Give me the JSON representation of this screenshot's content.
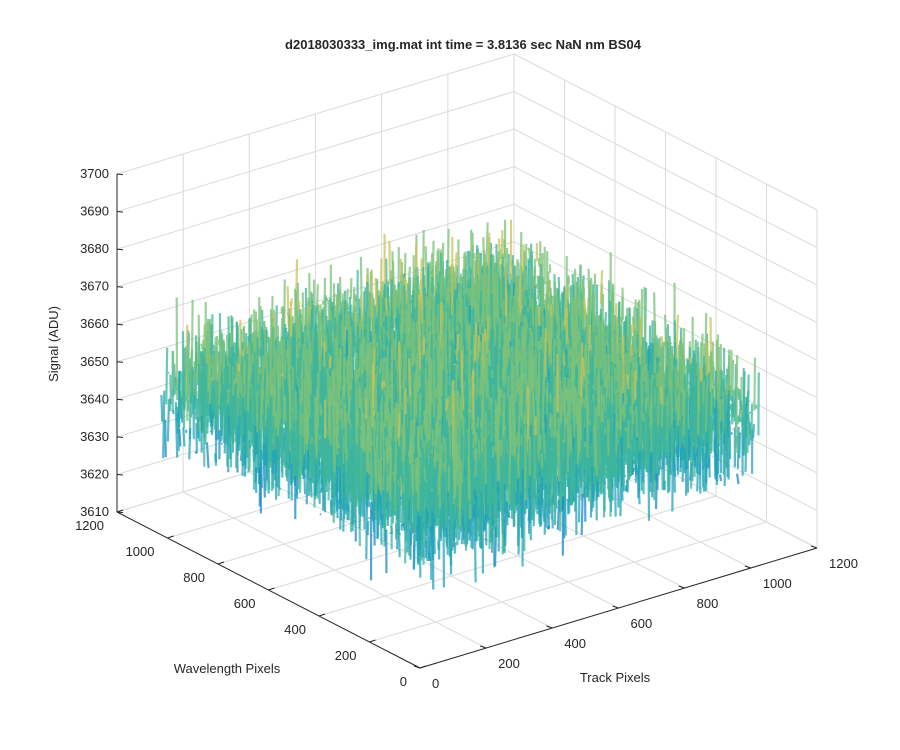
{
  "chart_data": {
    "type": "surface",
    "title": "d2018030333_img.mat int time = 3.8136 sec  NaN nm BS04",
    "xlabel": "Track Pixels",
    "ylabel": "Wavelength Pixels",
    "zlabel": "Signal (ADU)",
    "xlim": [
      0,
      1200
    ],
    "ylim": [
      0,
      1200
    ],
    "zlim": [
      3610,
      3700
    ],
    "x_ticks": [
      "0",
      "200",
      "400",
      "600",
      "800",
      "1000",
      "1200"
    ],
    "y_ticks": [
      "0",
      "200",
      "400",
      "600",
      "800",
      "1000",
      "1200"
    ],
    "z_ticks": [
      "3610",
      "3620",
      "3630",
      "3640",
      "3650",
      "3660",
      "3670",
      "3680",
      "3690",
      "3700"
    ],
    "data_extent": {
      "x": [
        0,
        1024
      ],
      "y": [
        0,
        1024
      ]
    },
    "signal_mean": 3650,
    "signal_noise_range": [
      3620,
      3680
    ],
    "grid": true,
    "colormap": [
      "#0072bd",
      "#1a8ac9",
      "#21a3b7",
      "#3fb59c",
      "#7cc27b",
      "#c8c35a",
      "#e8b840"
    ]
  }
}
